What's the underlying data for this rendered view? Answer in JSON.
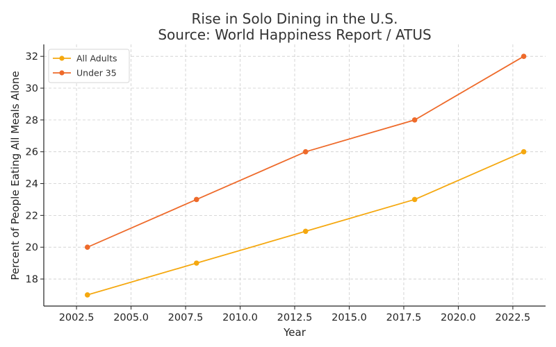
{
  "chart_data": {
    "type": "line",
    "title_line1": "Rise in Solo Dining in the U.S.",
    "title_line2": "Source: World Happiness Report / ATUS",
    "xlabel": "Year",
    "ylabel": "Percent of People Eating All Meals Alone",
    "x": [
      2003,
      2008,
      2013,
      2018,
      2023
    ],
    "xlim": [
      2001.0,
      2024.0
    ],
    "ylim": [
      16.3,
      32.75
    ],
    "x_ticks": [
      2002.5,
      2005.0,
      2007.5,
      2010.0,
      2012.5,
      2015.0,
      2017.5,
      2020.0,
      2022.5
    ],
    "x_tick_labels": [
      "2002.5",
      "2005.0",
      "2007.5",
      "2010.0",
      "2012.5",
      "2015.0",
      "2017.5",
      "2020.0",
      "2022.5"
    ],
    "y_ticks": [
      18,
      20,
      22,
      24,
      26,
      28,
      30,
      32
    ],
    "y_tick_labels": [
      "18",
      "20",
      "22",
      "24",
      "26",
      "28",
      "30",
      "32"
    ],
    "grid": true,
    "legend_position": "top-left",
    "series": [
      {
        "name": "All Adults",
        "values": [
          17,
          19,
          21,
          23,
          26
        ],
        "color": "#f5a80f"
      },
      {
        "name": "Under 35",
        "values": [
          20,
          23,
          26,
          28,
          32
        ],
        "color": "#ee6a2a"
      }
    ]
  }
}
